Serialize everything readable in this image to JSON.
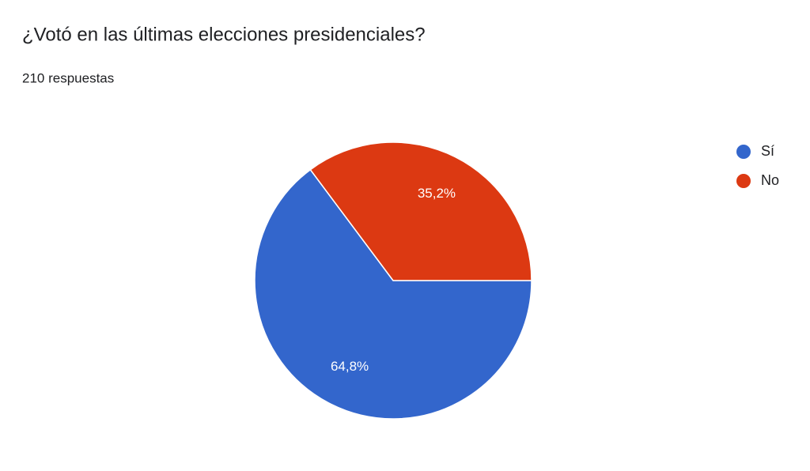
{
  "chart_data": {
    "type": "pie",
    "title": "¿Votó en las últimas elecciones presidenciales?",
    "subtitle": "210 respuestas",
    "categories": [
      "Sí",
      "No"
    ],
    "values": [
      64.8,
      35.2
    ],
    "value_labels": [
      "64,8%",
      "35,2%"
    ],
    "colors": [
      "#3366cc",
      "#dc3912"
    ],
    "legend": "right"
  }
}
